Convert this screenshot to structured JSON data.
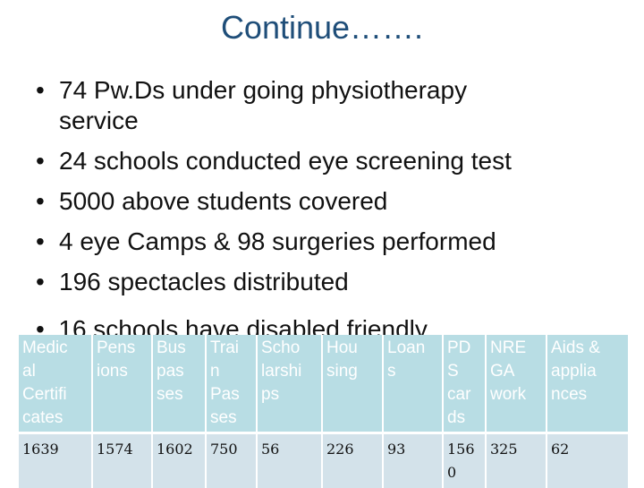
{
  "title": "Continue…….",
  "bullets": [
    {
      "line1": "74 Pw.Ds under going physiotherapy",
      "line2": "service"
    },
    {
      "line1": "24 schools conducted eye screening test"
    },
    {
      "line1": " 5000 above students covered"
    },
    {
      "line1": "4  eye Camps & 98  surgeries performed"
    },
    {
      "line1": "196  spectacles distributed"
    }
  ],
  "overlapped_bullet": "16  schools have disabled friendly",
  "table": {
    "headers": [
      "Medical Certificates",
      "Pensions",
      "Bus passes",
      "Train Passes",
      "Scholarships",
      "Housing",
      "Loans",
      "PDS cards",
      "NREGA work",
      "Aids & appliances"
    ],
    "header_lines": [
      [
        "Medic",
        "al",
        "Certifi",
        "cates"
      ],
      [
        "Pens",
        "ions"
      ],
      [
        "Bus",
        "pas",
        "ses"
      ],
      [
        "Trai",
        "n",
        "Pas",
        "ses"
      ],
      [
        "Scho",
        "larshi",
        "ps"
      ],
      [
        "Hou",
        "sing"
      ],
      [
        "Loan",
        "s"
      ],
      [
        "PD",
        "S",
        "car",
        "ds"
      ],
      [
        "NRE",
        "GA",
        "work"
      ],
      [
        "Aids &",
        "applia",
        "nces"
      ]
    ],
    "values": [
      "1639",
      "1574",
      "1602",
      "750",
      "56",
      "226",
      "93",
      "1560",
      "325",
      "62"
    ]
  }
}
